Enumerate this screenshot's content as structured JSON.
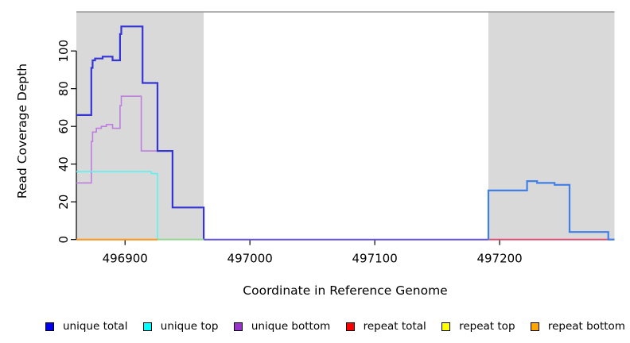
{
  "chart_data": {
    "type": "line",
    "style": "step",
    "title": "",
    "xlabel": "Coordinate in Reference Genome",
    "ylabel": "Read Coverage Depth",
    "xlim": [
      496861,
      497292
    ],
    "ylim": [
      0,
      120.7
    ],
    "x_ticks": [
      496900,
      497000,
      497100,
      497200
    ],
    "y_ticks": [
      0,
      20,
      40,
      60,
      80,
      100
    ],
    "grid": false,
    "background": "#ffffff",
    "plot_top_border_color": "#999999",
    "shaded_regions": [
      {
        "name": "left-shaded-region",
        "x0": 496861,
        "x1": 496963,
        "color": "#d9d9d9"
      },
      {
        "name": "right-shaded-region",
        "x0": 497191,
        "x1": 497292,
        "color": "#d9d9d9"
      }
    ],
    "series": [
      {
        "name": "unique-bottom",
        "color": "#bd7ede",
        "width": 1.6,
        "points": [
          [
            496861,
            30
          ],
          [
            496873,
            30
          ],
          [
            496873,
            52
          ],
          [
            496874,
            52
          ],
          [
            496874,
            57
          ],
          [
            496877,
            57
          ],
          [
            496877,
            59
          ],
          [
            496881,
            59
          ],
          [
            496881,
            60
          ],
          [
            496885,
            60
          ],
          [
            496885,
            61
          ],
          [
            496890,
            61
          ],
          [
            496890,
            59
          ],
          [
            496896,
            59
          ],
          [
            496896,
            71
          ],
          [
            496897,
            71
          ],
          [
            496897,
            76
          ],
          [
            496913,
            76
          ],
          [
            496913,
            47
          ],
          [
            496938,
            47
          ],
          [
            496938,
            17
          ],
          [
            496963,
            17
          ],
          [
            496963,
            0
          ]
        ]
      },
      {
        "name": "unique-top",
        "color": "#5ff0f0",
        "width": 1.6,
        "points": [
          [
            496861,
            36
          ],
          [
            496921,
            36
          ],
          [
            496921,
            35
          ],
          [
            496926,
            35
          ],
          [
            496926,
            0
          ]
        ]
      },
      {
        "name": "unique-total-left",
        "color": "#3535d5",
        "width": 2.2,
        "points": [
          [
            496861,
            66
          ],
          [
            496873,
            66
          ],
          [
            496873,
            91
          ],
          [
            496874,
            91
          ],
          [
            496874,
            95
          ],
          [
            496876,
            95
          ],
          [
            496876,
            96
          ],
          [
            496882,
            96
          ],
          [
            496882,
            97
          ],
          [
            496890,
            97
          ],
          [
            496890,
            95
          ],
          [
            496896,
            95
          ],
          [
            496896,
            109
          ],
          [
            496897,
            109
          ],
          [
            496897,
            113
          ],
          [
            496914,
            113
          ],
          [
            496914,
            83
          ],
          [
            496926,
            83
          ],
          [
            496926,
            47
          ],
          [
            496938,
            47
          ],
          [
            496938,
            17
          ],
          [
            496963,
            17
          ],
          [
            496963,
            0
          ]
        ]
      },
      {
        "name": "baseline-repeat-bottom",
        "color": "#ff9718",
        "width": 2,
        "points": [
          [
            496861,
            0
          ],
          [
            496926,
            0
          ]
        ]
      },
      {
        "name": "baseline-overlap-green",
        "color": "#90d890",
        "width": 1.8,
        "points": [
          [
            496926,
            0
          ],
          [
            496963,
            0
          ]
        ]
      },
      {
        "name": "baseline-unique-violet",
        "color": "#6355de",
        "width": 2,
        "points": [
          [
            496963,
            0
          ],
          [
            497191,
            0
          ]
        ]
      },
      {
        "name": "baseline-repeat-total",
        "color": "#e04a6e",
        "width": 1.8,
        "points": [
          [
            497191,
            0
          ],
          [
            497292,
            0
          ]
        ]
      },
      {
        "name": "unique-total-right",
        "color": "#3f80e8",
        "width": 2.2,
        "points": [
          [
            497191,
            0
          ],
          [
            497191,
            26
          ],
          [
            497222,
            26
          ],
          [
            497222,
            31
          ],
          [
            497230,
            31
          ],
          [
            497230,
            30
          ],
          [
            497244,
            30
          ],
          [
            497244,
            29
          ],
          [
            497256,
            29
          ],
          [
            497256,
            4
          ],
          [
            497287,
            4
          ],
          [
            497287,
            0
          ],
          [
            497292,
            0
          ]
        ]
      }
    ],
    "legend": {
      "position": "bottom",
      "items": [
        {
          "label": "unique total",
          "color": "#0000ee"
        },
        {
          "label": "unique top",
          "color": "#00ffff"
        },
        {
          "label": "unique bottom",
          "color": "#9932cc"
        },
        {
          "label": "repeat total",
          "color": "#ff0000"
        },
        {
          "label": "repeat top",
          "color": "#ffff00"
        },
        {
          "label": "repeat bottom",
          "color": "#ffa500"
        }
      ]
    }
  }
}
